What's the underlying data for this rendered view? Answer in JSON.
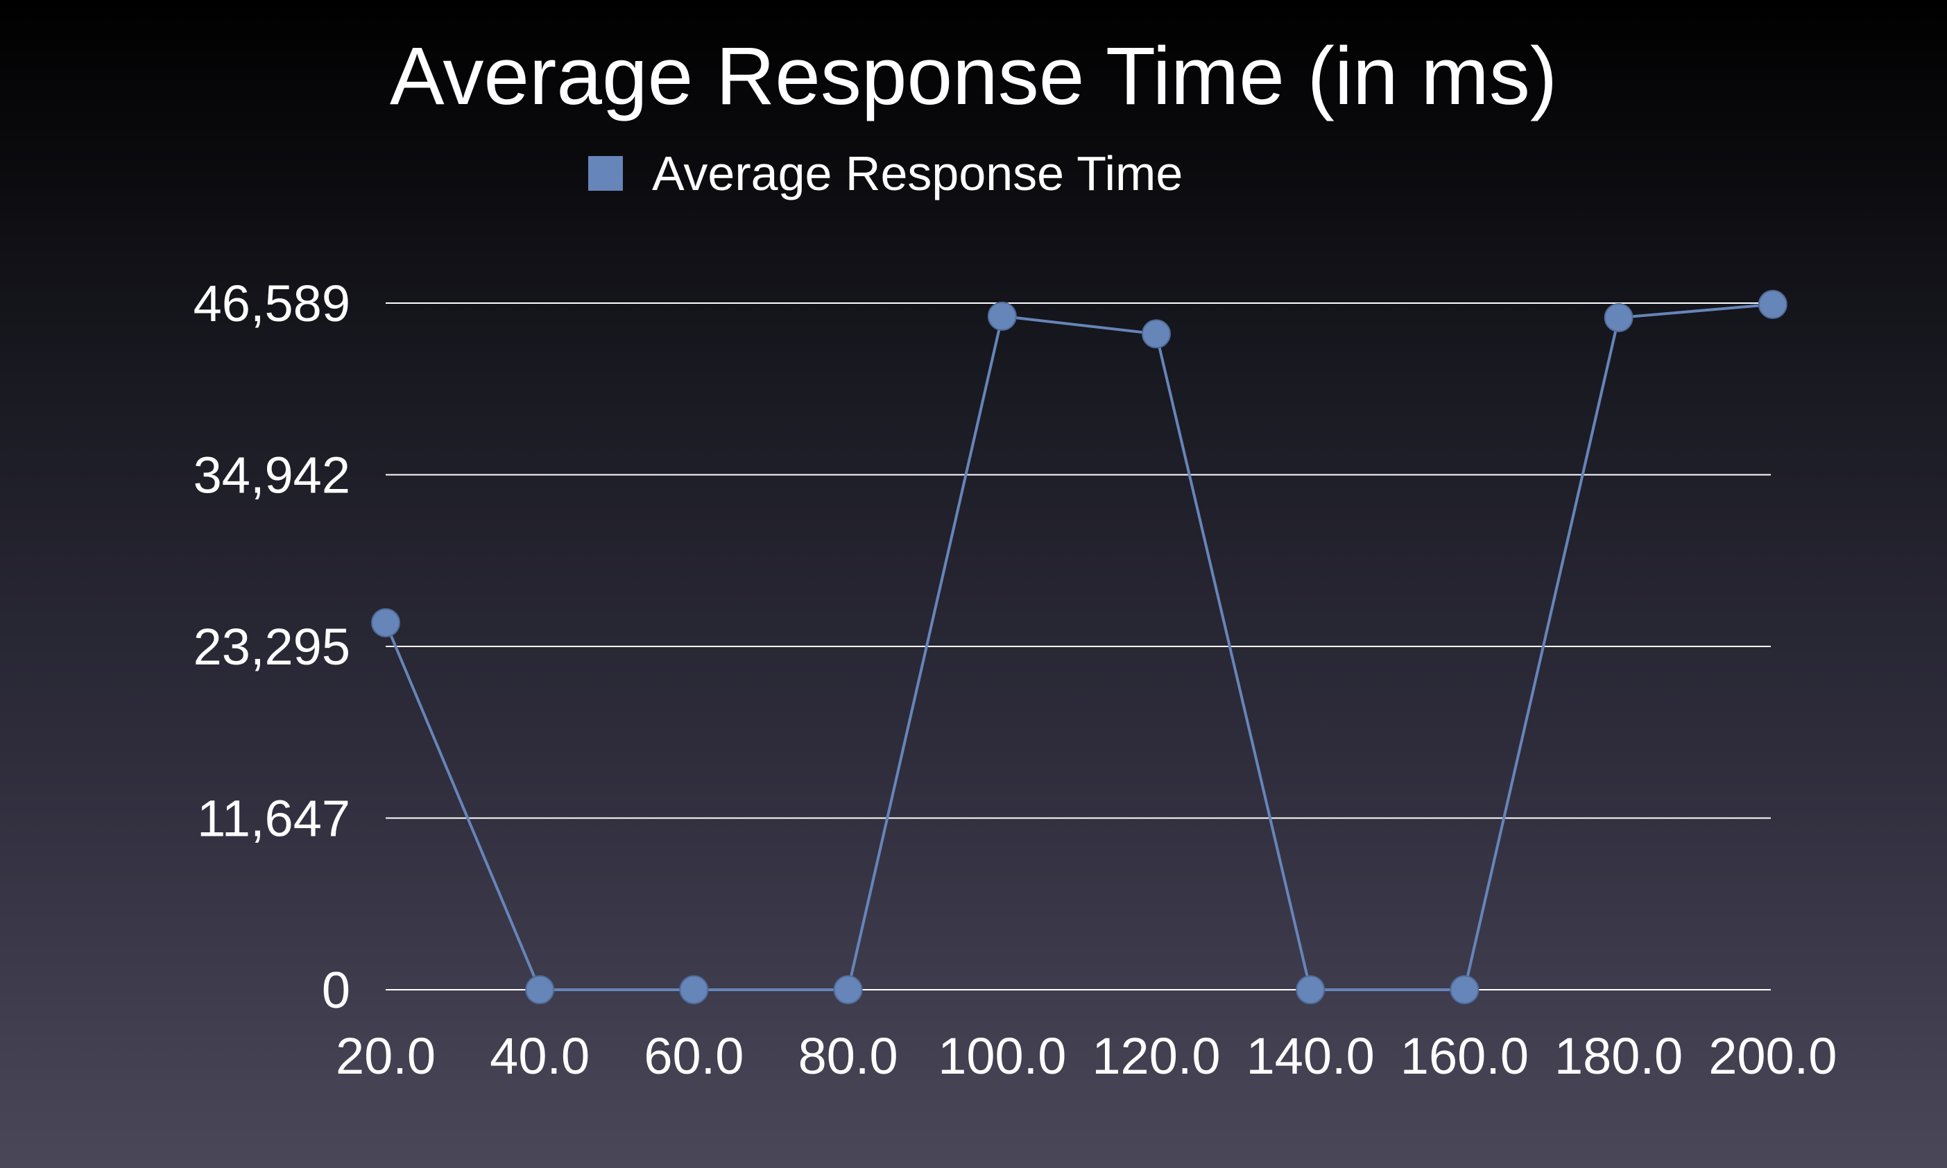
{
  "chart_data": {
    "type": "line",
    "title": "Average Response Time (in ms)",
    "xlabel": "",
    "ylabel": "",
    "x": [
      20.0,
      40.0,
      60.0,
      80.0,
      100.0,
      120.0,
      140.0,
      160.0,
      180.0,
      200.0
    ],
    "x_tick_labels": [
      "20.0",
      "40.0",
      "60.0",
      "80.0",
      "100.0",
      "120.0",
      "140.0",
      "160.0",
      "180.0",
      "200.0"
    ],
    "y_tick_labels": [
      "0",
      "11,647",
      "23,295",
      "34,942",
      "46,589"
    ],
    "y_ticks": [
      0,
      11647,
      23295,
      34942,
      46589
    ],
    "ylim": [
      0,
      46589
    ],
    "grid": true,
    "legend_position": "top-center",
    "series": [
      {
        "name": "Average Response Time",
        "color": "#6685b9",
        "values": [
          24900,
          0,
          0,
          0,
          45700,
          44500,
          0,
          0,
          45600,
          46500
        ]
      }
    ]
  }
}
